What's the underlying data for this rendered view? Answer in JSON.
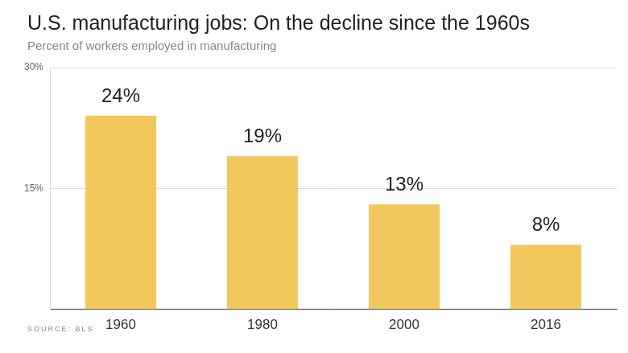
{
  "chart_data": {
    "type": "bar",
    "title": "U.S. manufacturing jobs: On the decline since the 1960s",
    "subtitle": "Percent of workers employed in manufacturing",
    "source": "SOURCE: BLS",
    "categories": [
      "1960",
      "1980",
      "2000",
      "2016"
    ],
    "values": [
      24,
      19,
      13,
      8
    ],
    "value_labels": [
      "24%",
      "19%",
      "13%",
      "8%"
    ],
    "color": "#f2c75c",
    "ylim": [
      0,
      30
    ],
    "yticks": [
      {
        "value": 15,
        "label": "15%"
      },
      {
        "value": 30,
        "label": "30%"
      }
    ],
    "grid": true,
    "data_labels": true
  }
}
